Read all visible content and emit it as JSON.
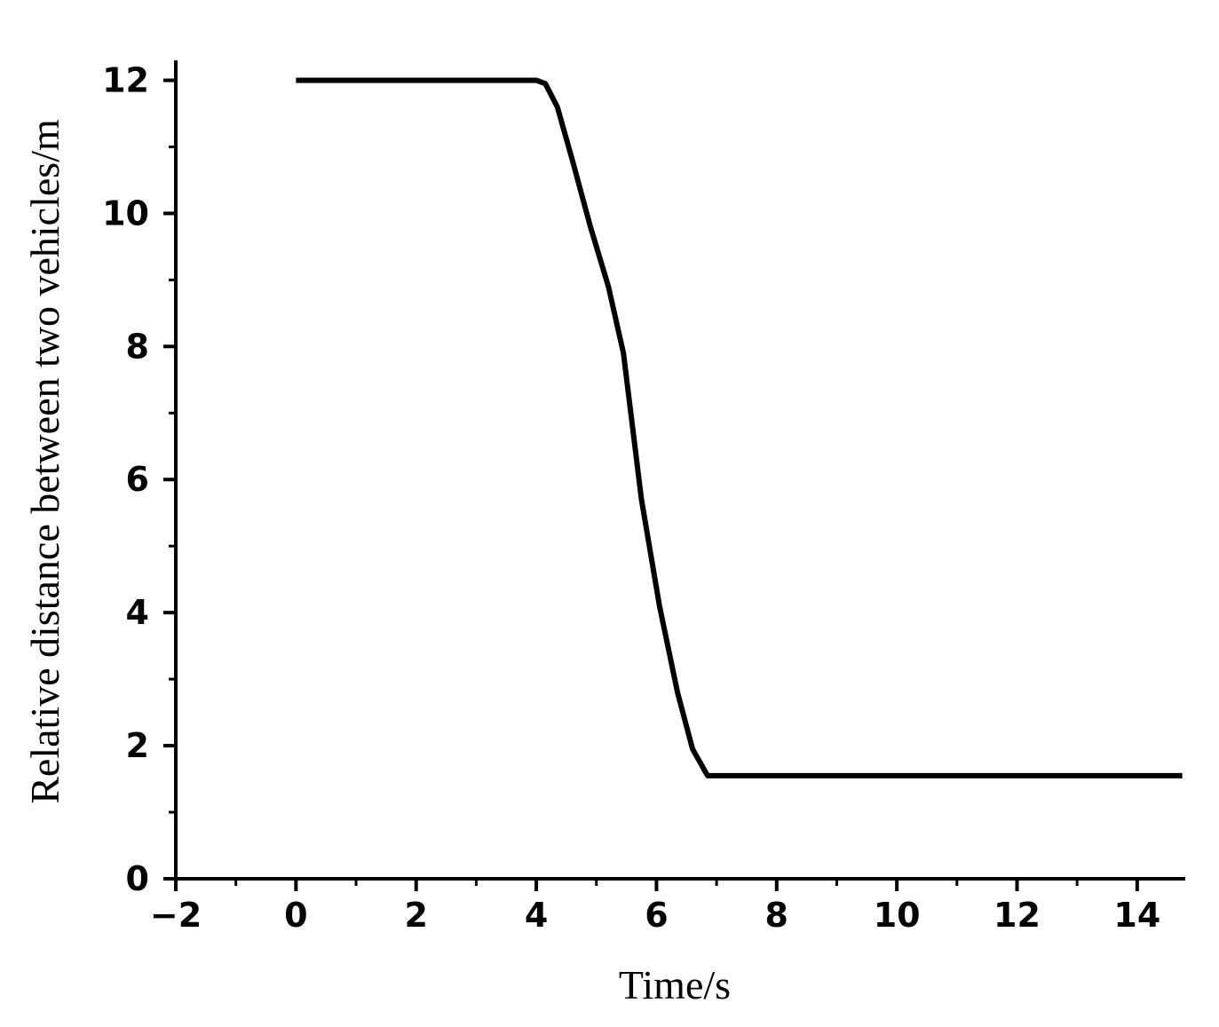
{
  "chart_data": {
    "type": "line",
    "xlabel": "Time/s",
    "ylabel": "Relative distance between two vehicles/m",
    "x": [
      0,
      4.0,
      4.15,
      4.35,
      4.6,
      4.9,
      5.2,
      5.45,
      5.75,
      6.05,
      6.35,
      6.6,
      6.85,
      14.75
    ],
    "values": [
      12,
      12,
      11.95,
      11.6,
      10.8,
      9.8,
      8.9,
      7.9,
      5.7,
      4.1,
      2.8,
      1.95,
      1.55,
      1.55
    ],
    "color": "#000000",
    "xlim": [
      -2,
      14.8
    ],
    "ylim": [
      0,
      12.3
    ],
    "xticks": [
      {
        "value": -2,
        "label": "−2"
      },
      0,
      2,
      4,
      6,
      8,
      10,
      12,
      14
    ],
    "yticks": [
      0,
      2,
      4,
      6,
      8,
      10,
      12
    ],
    "xminorticks": [
      -1,
      1,
      3,
      5,
      7,
      9,
      11,
      13
    ],
    "yminorticks": [
      1,
      3,
      5,
      7,
      9,
      11
    ]
  }
}
